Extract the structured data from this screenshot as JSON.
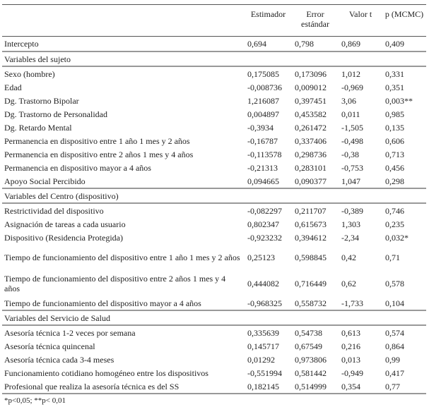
{
  "headers": [
    "",
    "Estimador",
    "Error estándar",
    "Valor t",
    "p (MCMC)"
  ],
  "intercept": {
    "label": "Intercepto",
    "values": [
      "0,694",
      "0,798",
      "0,869",
      "0,409"
    ]
  },
  "sections": [
    {
      "title": "Variables del sujeto",
      "rows": [
        {
          "label": "Sexo (hombre)",
          "values": [
            "0,175085",
            "0,173096",
            "1,012",
            "0,331"
          ]
        },
        {
          "label": "Edad",
          "values": [
            "-0,008736",
            "0,009012",
            "-0,969",
            "0,351"
          ]
        },
        {
          "label": "Dg. Trastorno Bipolar",
          "values": [
            "1,216087",
            "0,397451",
            "3,06",
            "0,003**"
          ]
        },
        {
          "label": "Dg. Trastorno de Personalidad",
          "values": [
            "0,004897",
            "0,453582",
            "0,011",
            "0,985"
          ]
        },
        {
          "label": "Dg. Retardo Mental",
          "values": [
            "-0,3934",
            "0,261472",
            "-1,505",
            "0,135"
          ]
        },
        {
          "label": "Permanencia en dispositivo entre 1 año 1 mes y 2 años",
          "values": [
            "-0,16787",
            "0,337406",
            "-0,498",
            "0,606"
          ]
        },
        {
          "label": "Permanencia en dispositivo entre 2 años 1 mes y 4 años",
          "values": [
            "-0,113578",
            "0,298736",
            "-0,38",
            "0,713"
          ]
        },
        {
          "label": "Permanencia en dispositivo mayor a 4 años",
          "values": [
            "-0,21313",
            "0,283101",
            "-0,753",
            "0,456"
          ]
        },
        {
          "label": "Apoyo Social Percibido",
          "values": [
            "0,094665",
            "0,090377",
            "1,047",
            "0,298"
          ]
        }
      ]
    },
    {
      "title": "Variables del Centro (dispositivo)",
      "rows": [
        {
          "label": "Restrictividad del dispositivo",
          "values": [
            "-0,082297",
            "0,211707",
            "-0,389",
            "0,746"
          ]
        },
        {
          "label": "Asignación de tareas a cada usuario",
          "values": [
            "0,802347",
            "0,615673",
            "1,303",
            "0,235"
          ]
        },
        {
          "label": "Dispositivo (Residencia Protegida)",
          "values": [
            "-0,923232",
            "0,394612",
            "-2,34",
            "0,032*"
          ]
        },
        {
          "label": "Tiempo de funcionamiento del dispositivo entre 1 año 1 mes y 2 años",
          "values": [
            "0,25123",
            "0,598845",
            "0,42",
            "0,71"
          ]
        },
        {
          "label": "Tiempo de funcionamiento del dispositivo entre 2 años 1 mes y 4 años",
          "values": [
            "0,444082",
            "0,716449",
            "0,62",
            "0,578"
          ]
        },
        {
          "label": "Tiempo de funcionamiento del dispositivo mayor a 4 años",
          "values": [
            "-0,968325",
            "0,558732",
            "-1,733",
            "0,104"
          ]
        }
      ]
    },
    {
      "title": "Variables del Servicio de Salud",
      "rows": [
        {
          "label": "Asesoría técnica 1-2 veces por semana",
          "values": [
            "0,335639",
            "0,54738",
            "0,613",
            "0,574"
          ]
        },
        {
          "label": "Asesoría técnica quincenal",
          "values": [
            "0,145717",
            "0,67549",
            "0,216",
            "0,864"
          ]
        },
        {
          "label": "Asesoría técnica cada 3-4 meses",
          "values": [
            "0,01292",
            "0,973806",
            "0,013",
            "0,99"
          ]
        },
        {
          "label": "Funcionamiento cotidiano homogéneo entre los dispositivos",
          "values": [
            "-0,551994",
            "0,581442",
            "-0,949",
            "0,417"
          ]
        },
        {
          "label": "Profesional que realiza la asesoría técnica es del SS",
          "values": [
            "0,182145",
            "0,514999",
            "0,354",
            "0,77"
          ]
        }
      ]
    }
  ],
  "footnote": "*p<0,05; **p< 0,01"
}
